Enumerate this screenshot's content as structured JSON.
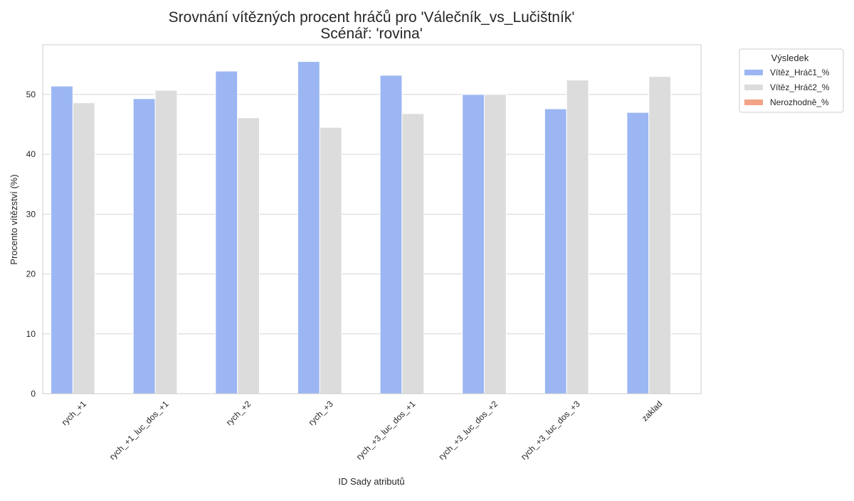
{
  "chart_data": {
    "type": "bar",
    "title": "Srovnání vítězných procent hráčů pro 'Válečník_vs_Lučištník'",
    "subtitle": "Scénář: 'rovina'",
    "xlabel": "ID Sady atributů",
    "ylabel": "Procento vítězství (%)",
    "ylim": [
      0,
      58.3
    ],
    "yticks": [
      0,
      10,
      20,
      30,
      40,
      50
    ],
    "grid": true,
    "legend_position": "outside-right",
    "legend_title": "Výsledek",
    "categories": [
      "rych_+1",
      "rych_+1_luc_dos_+1",
      "rych_+2",
      "rych_+3",
      "rych_+3_luc_dos_+1",
      "rych_+3_luc_dos_+2",
      "rych_+3_luc_dos_+3",
      "zaklad"
    ],
    "series": [
      {
        "name": "Vítěz_Hráč1_%",
        "color": "#9bb6f2",
        "values": [
          51.4,
          49.3,
          53.9,
          55.5,
          53.2,
          50.0,
          47.6,
          47.0
        ]
      },
      {
        "name": "Vítěz_Hráč2_%",
        "color": "#dcdcdc",
        "values": [
          48.6,
          50.7,
          46.1,
          44.5,
          46.8,
          50.0,
          52.4,
          53.0
        ]
      },
      {
        "name": "Nerozhodně_%",
        "color": "#f2a285",
        "values": [
          0,
          0,
          0,
          0,
          0,
          0,
          0,
          0
        ]
      }
    ]
  }
}
